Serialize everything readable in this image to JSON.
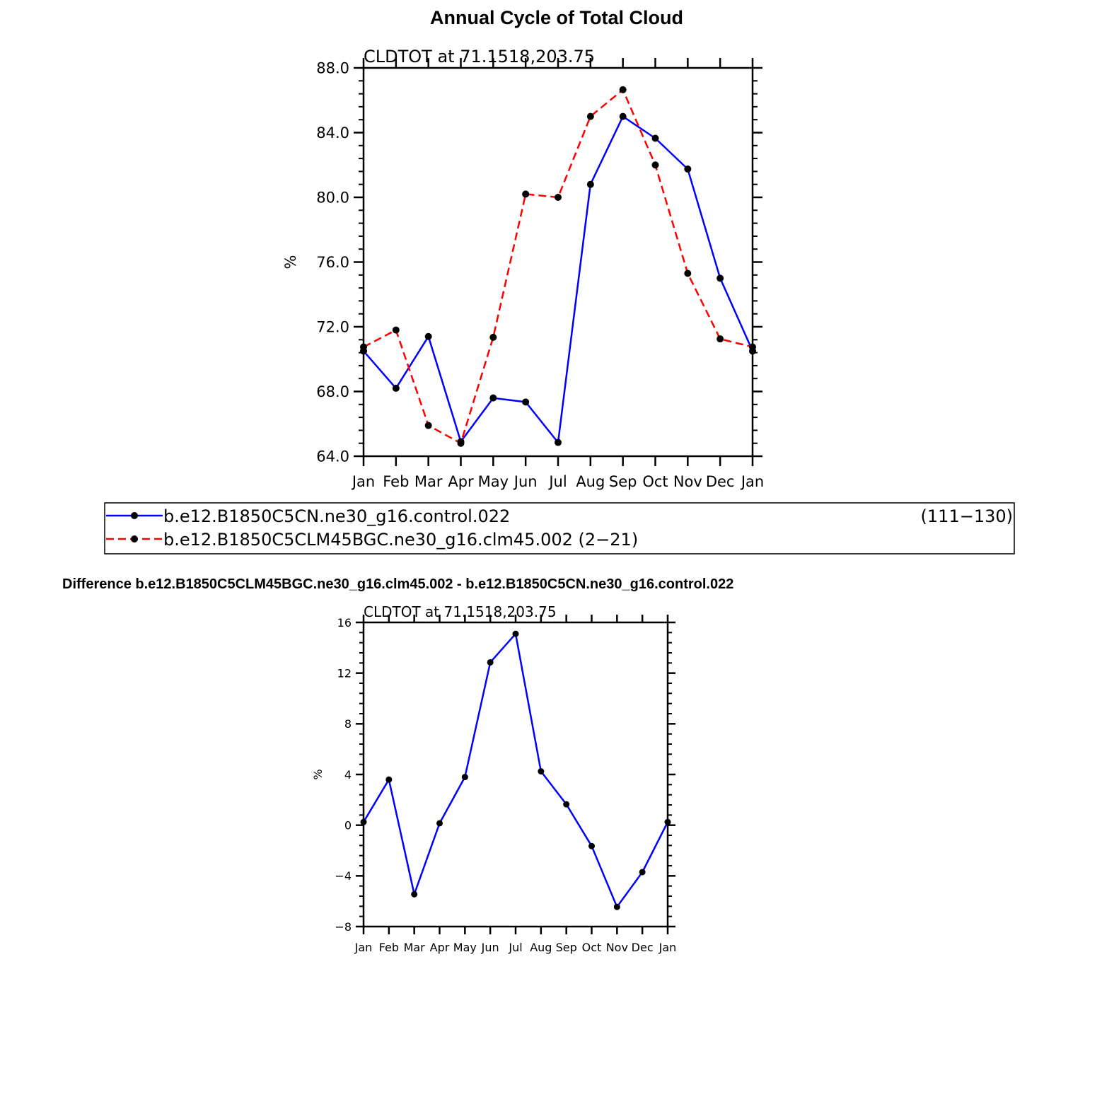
{
  "figure": {
    "title": "Annual Cycle of Total Cloud",
    "diff_title": "Difference b.e12.B1850C5CLM45BGC.ne30_g16.clm45.002 - b.e12.B1850C5CN.ne30_g16.control.022"
  },
  "legend": {
    "entries": [
      {
        "label": "b.e12.B1850C5CN.ne30_g16.control.022",
        "years": "(111−130)",
        "color": "#0000ff",
        "dash": "solid"
      },
      {
        "label": "b.e12.B1850C5CLM45BGC.ne30_g16.clm45.002 (2−21)",
        "color": "#ff0000",
        "dash": "dashed"
      }
    ]
  },
  "chart_data": [
    {
      "type": "line",
      "title": "Annual Cycle of Total Cloud",
      "subtitle": "CLDTOT  at  71.1518,203.75",
      "ylabel": "%",
      "categories": [
        "Jan",
        "Feb",
        "Mar",
        "Apr",
        "May",
        "Jun",
        "Jul",
        "Aug",
        "Sep",
        "Oct",
        "Nov",
        "Dec",
        "Jan"
      ],
      "yticks": [
        "64.0",
        "68.0",
        "72.0",
        "76.0",
        "80.0",
        "84.0",
        "88.0"
      ],
      "ylim": [
        64,
        88
      ],
      "series": [
        {
          "name": "b.e12.B1850C5CN.ne30_g16.control.022",
          "color": "#0000ff",
          "dash": "solid",
          "values": [
            70.5,
            68.2,
            71.4,
            64.9,
            67.6,
            67.35,
            64.85,
            80.8,
            85.0,
            83.65,
            81.75,
            75.0,
            70.5
          ]
        },
        {
          "name": "b.e12.B1850C5CLM45BGC.ne30_g16.clm45.002",
          "color": "#ff0000",
          "dash": "dashed",
          "values": [
            70.75,
            71.8,
            65.9,
            64.8,
            71.35,
            80.2,
            80.0,
            85.0,
            86.65,
            82.0,
            75.3,
            71.25,
            70.75
          ]
        }
      ]
    },
    {
      "type": "line",
      "title": "Difference b.e12.B1850C5CLM45BGC.ne30_g16.clm45.002 - b.e12.B1850C5CN.ne30_g16.control.022",
      "subtitle": "CLDTOT  at  71.1518,203.75",
      "ylabel": "%",
      "categories": [
        "Jan",
        "Feb",
        "Mar",
        "Apr",
        "May",
        "Jun",
        "Jul",
        "Aug",
        "Sep",
        "Oct",
        "Nov",
        "Dec",
        "Jan"
      ],
      "yticks": [
        "−8",
        "−4",
        "0",
        "4",
        "8",
        "12",
        "16"
      ],
      "ylim": [
        -8,
        16
      ],
      "series": [
        {
          "color": "#0000ff",
          "dash": "solid",
          "values": [
            0.25,
            3.6,
            -5.45,
            0.15,
            3.8,
            12.85,
            15.1,
            4.25,
            1.65,
            -1.65,
            -6.45,
            -3.7,
            0.25
          ]
        }
      ]
    }
  ]
}
